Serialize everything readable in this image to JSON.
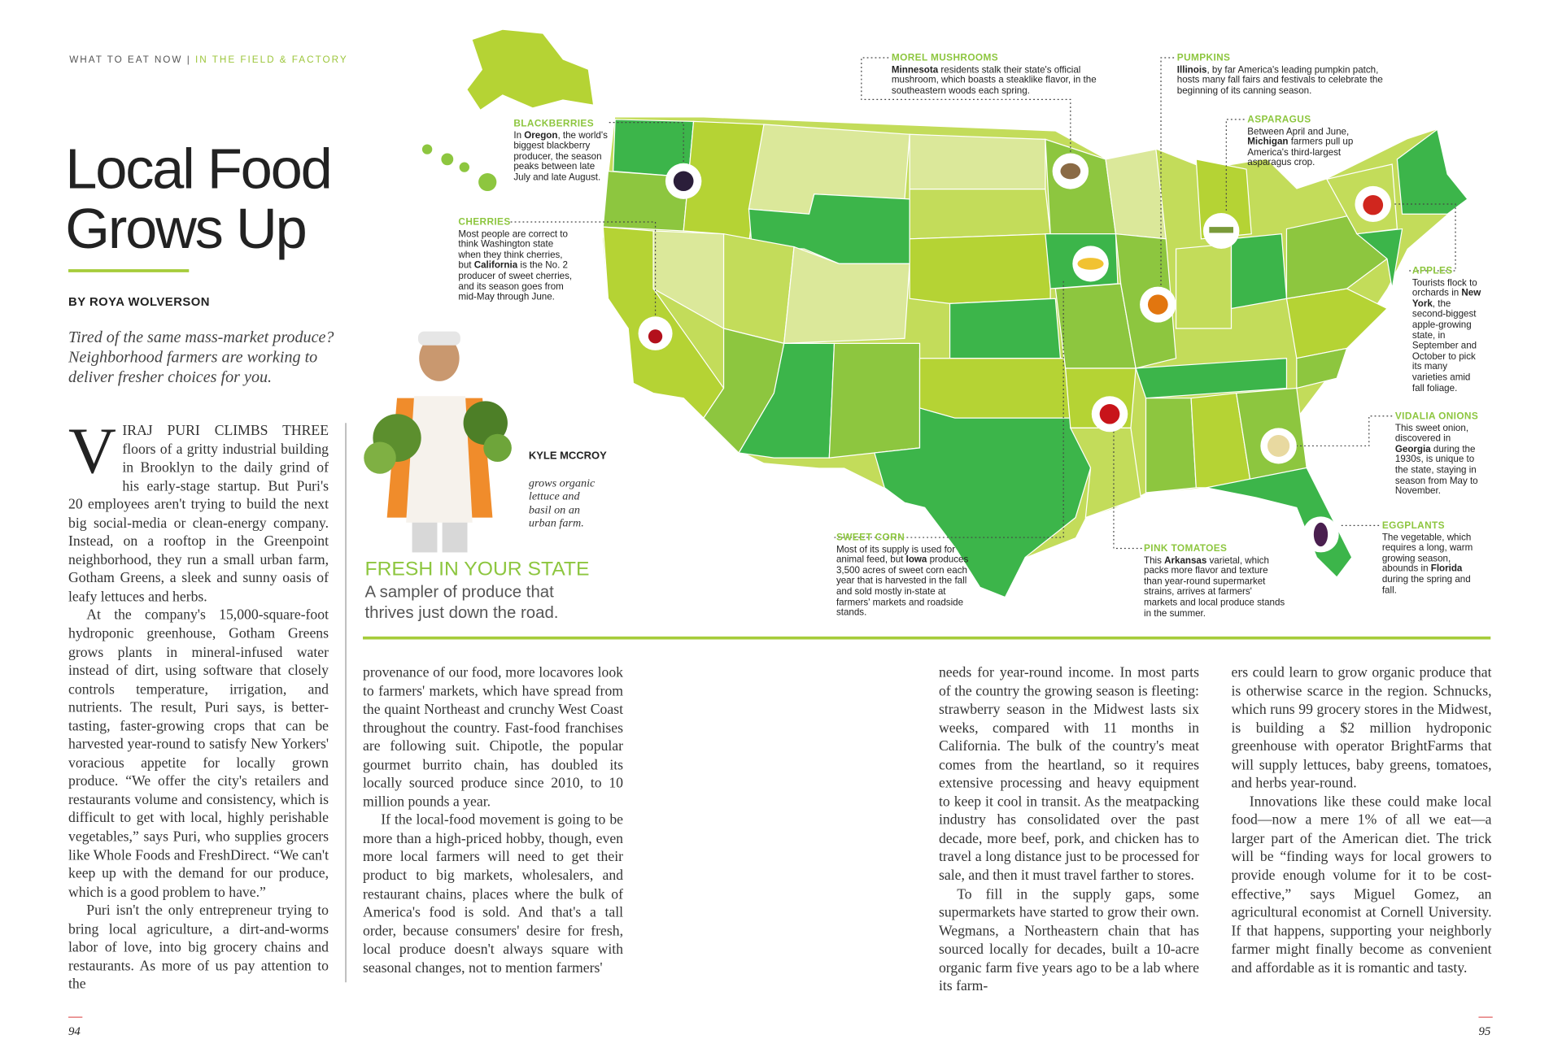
{
  "header": {
    "section": "WHAT TO EAT NOW",
    "separator": "|",
    "subsection": "IN THE FIELD & FACTORY"
  },
  "title": "Local Food Grows Up",
  "byline": "BY ROYA WOLVERSON",
  "dek": "Tired of the same mass-market produce? Neighborhood farmers are working to deliver fresher choices for you.",
  "photo_caption": {
    "name": "KYLE MCCROY",
    "text": "grows organic lettuce and basil on an urban farm."
  },
  "map": {
    "title": "FRESH IN YOUR STATE",
    "subtitle": "A sampler of produce that thrives just down the road.",
    "callouts": [
      {
        "label": "BLACKBERRIES",
        "before": "In ",
        "state": "Oregon",
        "after": ", the world's biggest blackberry producer, the season peaks between late July and late August."
      },
      {
        "label": "CHERRIES",
        "before": "Most people are correct to think Washington state when they think cherries, but ",
        "state": "California",
        "after": " is the No. 2 producer of sweet cherries, and its season goes from mid-May through June."
      },
      {
        "label": "MOREL MUSHROOMS",
        "state": "Minnesota",
        "after": " residents stalk their state's official mushroom, which boasts a steaklike flavor, in the southeastern woods each spring."
      },
      {
        "label": "PUMPKINS",
        "state": "Illinois",
        "after": ", by far America's leading pumpkin patch, hosts many fall fairs and festivals to celebrate the beginning of its canning season."
      },
      {
        "label": "ASPARAGUS",
        "before": "Between April and June, ",
        "state": "Michigan",
        "after": " farmers pull up America's third-largest asparagus crop."
      },
      {
        "label": "APPLES",
        "before": "Tourists flock to orchards in ",
        "state": "New York",
        "after": ", the second-biggest apple-growing state, in September and October to pick its many varieties amid fall foliage."
      },
      {
        "label": "VIDALIA ONIONS",
        "before": "This sweet onion, discovered in ",
        "state": "Georgia",
        "after": " during the 1930s, is unique to the state, staying in season from May to November."
      },
      {
        "label": "EGGPLANTS",
        "before": "The vegetable, which requires a long, warm growing season, abounds in ",
        "state": "Florida",
        "after": " during the spring and fall."
      },
      {
        "label": "PINK TOMATOES",
        "before": "This ",
        "state": "Arkansas",
        "after": " varietal, which packs more flavor and texture than year-round supermarket strains, arrives at farmers' markets and local produce stands in the summer."
      },
      {
        "label": "SWEET CORN",
        "before": "Most of its supply is used for animal feed, but ",
        "state": "Iowa",
        "after": " produces 3,500 acres of sweet corn each year that is harvested in the fall and sold mostly in-state at farmers' markets and roadside stands."
      }
    ]
  },
  "article": {
    "drop_cap": "V",
    "columns": [
      {
        "paragraphs": [
          "IRAJ PURI CLIMBS THREE floors of a gritty industrial building in Brooklyn to the daily grind of his early-stage startup. But Puri's 20 employees aren't trying to build the next big social-media or clean-energy company. Instead, on a rooftop in the Greenpoint neighborhood, they run a small urban farm, Gotham Greens, a sleek and sunny oasis of leafy lettuces and herbs.",
          "At the company's 15,000-square-foot hydroponic greenhouse, Gotham Greens grows plants in mineral-infused water instead of dirt, using software that closely controls temperature, irrigation, and nutrients. The result, Puri says, is better-tasting, faster-growing crops that can be harvested year-round to satisfy New Yorkers' voracious appetite for locally grown produce. “We offer the city's retailers and restaurants volume and consistency, which is difficult to get with local, highly perishable vegetables,” says Puri, who supplies grocers like Whole Foods and FreshDirect. “We can't keep up with the demand for our produce, which is a good problem to have.”",
          "Puri isn't the only entrepreneur trying to bring local agriculture, a dirt-and-worms labor of love, into big grocery chains and restaurants. As more of us pay attention to the"
        ]
      },
      {
        "paragraphs": [
          "provenance of our food, more locavores look to farmers' markets, which have spread from the quaint Northeast and crunchy West Coast throughout the country. Fast-food franchises are following suit. Chipotle, the popular gourmet burrito chain, has doubled its locally sourced produce since 2010, to 10 million pounds a year.",
          "If the local-food movement is going to be more than a high-priced hobby, though, even more local farmers will need to get their product to big markets, wholesalers, and restaurant chains, places where the bulk of America's food is sold. And that's a tall order, because consumers' desire for fresh, local produce doesn't always square with seasonal changes, not to mention farmers'"
        ]
      },
      {
        "paragraphs": [
          "needs for year-round income. In most parts of the country the growing season is fleeting: strawberry season in the Midwest lasts six weeks, compared with 11 months in California. The bulk of the country's meat comes from the heartland, so it requires extensive processing and heavy equipment to keep it cool in transit. As the meatpacking industry has consolidated over the past decade, more beef, pork, and chicken has to travel a long distance just to be processed for sale, and then it must travel farther to stores.",
          "To fill in the supply gaps, some supermarkets have started to grow their own. Wegmans, a Northeastern chain that has sourced locally for decades, built a 10-acre organic farm five years ago to be a lab where its farm-"
        ]
      },
      {
        "paragraphs": [
          "ers could learn to grow organic produce that is otherwise scarce in the region. Schnucks, which runs 99 grocery stores in the Midwest, is building a $2 million hydroponic greenhouse with operator BrightFarms that will supply lettuces, baby greens, tomatoes, and herbs year-round.",
          "Innovations like these could make local food—now a mere 1% of all we eat—a larger part of the American diet. The trick will be “finding ways for local growers to provide enough volume for it to be cost-effective,” says Miguel Gomez, an agricultural economist at Cornell University. If that happens, supporting your neighborly farmer might finally become as convenient and affordable as it is romantic and tasty."
        ]
      }
    ]
  },
  "page_numbers": [
    "94",
    "95"
  ]
}
